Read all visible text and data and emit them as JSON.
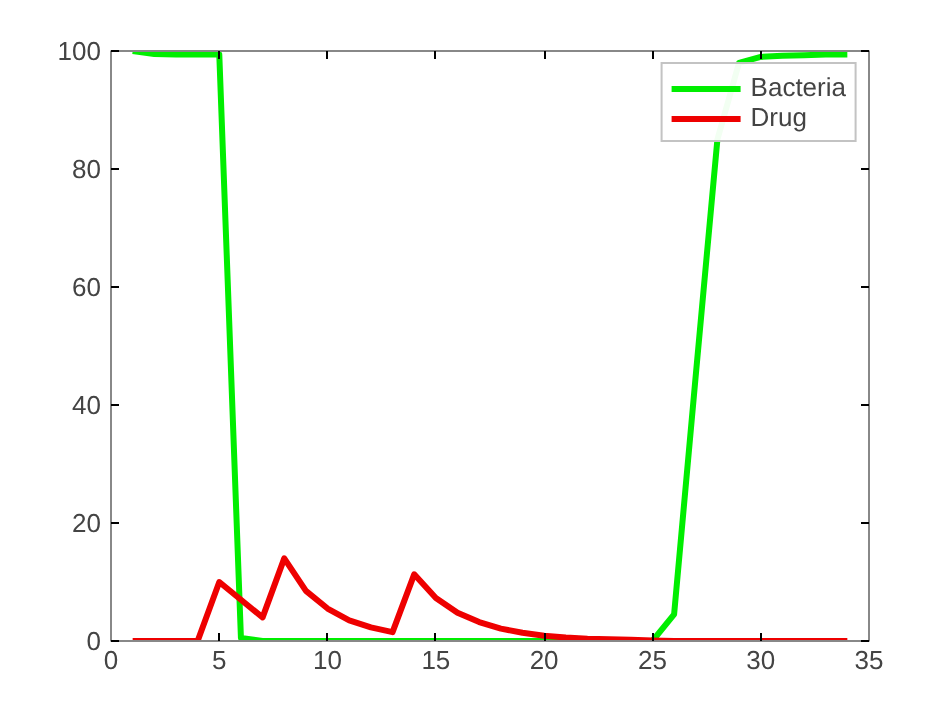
{
  "chart_data": {
    "type": "line",
    "x": [
      1,
      2,
      3,
      4,
      5,
      6,
      7,
      8,
      9,
      10,
      11,
      12,
      13,
      14,
      15,
      16,
      17,
      18,
      19,
      20,
      21,
      22,
      23,
      24,
      25,
      26,
      27,
      28,
      29,
      30,
      31,
      32,
      33,
      34
    ],
    "series": [
      {
        "name": "Bacteria",
        "color": "#00ee00",
        "values": [
          100,
          99.5,
          99.4,
          99.4,
          99.4,
          0.5,
          0,
          0,
          0,
          0,
          0,
          0,
          0,
          0,
          0,
          0,
          0,
          0,
          0,
          0,
          0,
          0,
          0,
          0,
          0,
          4.5,
          45,
          85,
          98,
          99,
          99.2,
          99.3,
          99.4,
          99.4
        ]
      },
      {
        "name": "Drug",
        "color": "#ee0000",
        "values": [
          0,
          0,
          0,
          0,
          10,
          7,
          4,
          14,
          8.5,
          5.5,
          3.5,
          2.3,
          1.5,
          11.3,
          7.3,
          4.8,
          3.2,
          2.1,
          1.4,
          0.9,
          0.6,
          0.4,
          0.3,
          0.2,
          0.1,
          0,
          0,
          0,
          0,
          0,
          0,
          0,
          0,
          0
        ]
      }
    ],
    "xlim": [
      0,
      35
    ],
    "xticks": [
      0,
      5,
      10,
      15,
      20,
      25,
      30,
      35
    ],
    "ylim": [
      0,
      100
    ],
    "yticks": [
      0,
      20,
      40,
      60,
      80,
      100
    ],
    "grid": false,
    "legend": "top right",
    "line_style": "solid",
    "marker": "none"
  }
}
